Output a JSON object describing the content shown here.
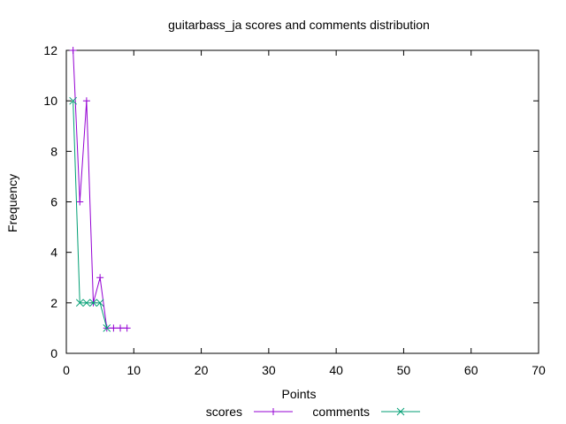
{
  "chart_data": {
    "type": "line",
    "title": "guitarbass_ja scores and comments distribution",
    "xlabel": "Points",
    "ylabel": "Frequency",
    "xlim": [
      0,
      70
    ],
    "ylim": [
      0,
      12
    ],
    "xticks": [
      0,
      10,
      20,
      30,
      40,
      50,
      60,
      70
    ],
    "yticks": [
      0,
      2,
      4,
      6,
      8,
      10,
      12
    ],
    "grid": false,
    "legend_position": "bottom-center",
    "series": [
      {
        "name": "scores",
        "color": "#9400d3",
        "marker": "plus",
        "x": [
          1,
          2,
          3,
          4,
          5,
          6,
          7,
          8,
          9
        ],
        "y": [
          12,
          6,
          10,
          2,
          3,
          1,
          1,
          1,
          1
        ]
      },
      {
        "name": "comments",
        "color": "#009e73",
        "marker": "cross",
        "x": [
          1,
          2,
          3,
          4,
          5,
          6
        ],
        "y": [
          10,
          2,
          2,
          2,
          2,
          1
        ]
      }
    ]
  }
}
